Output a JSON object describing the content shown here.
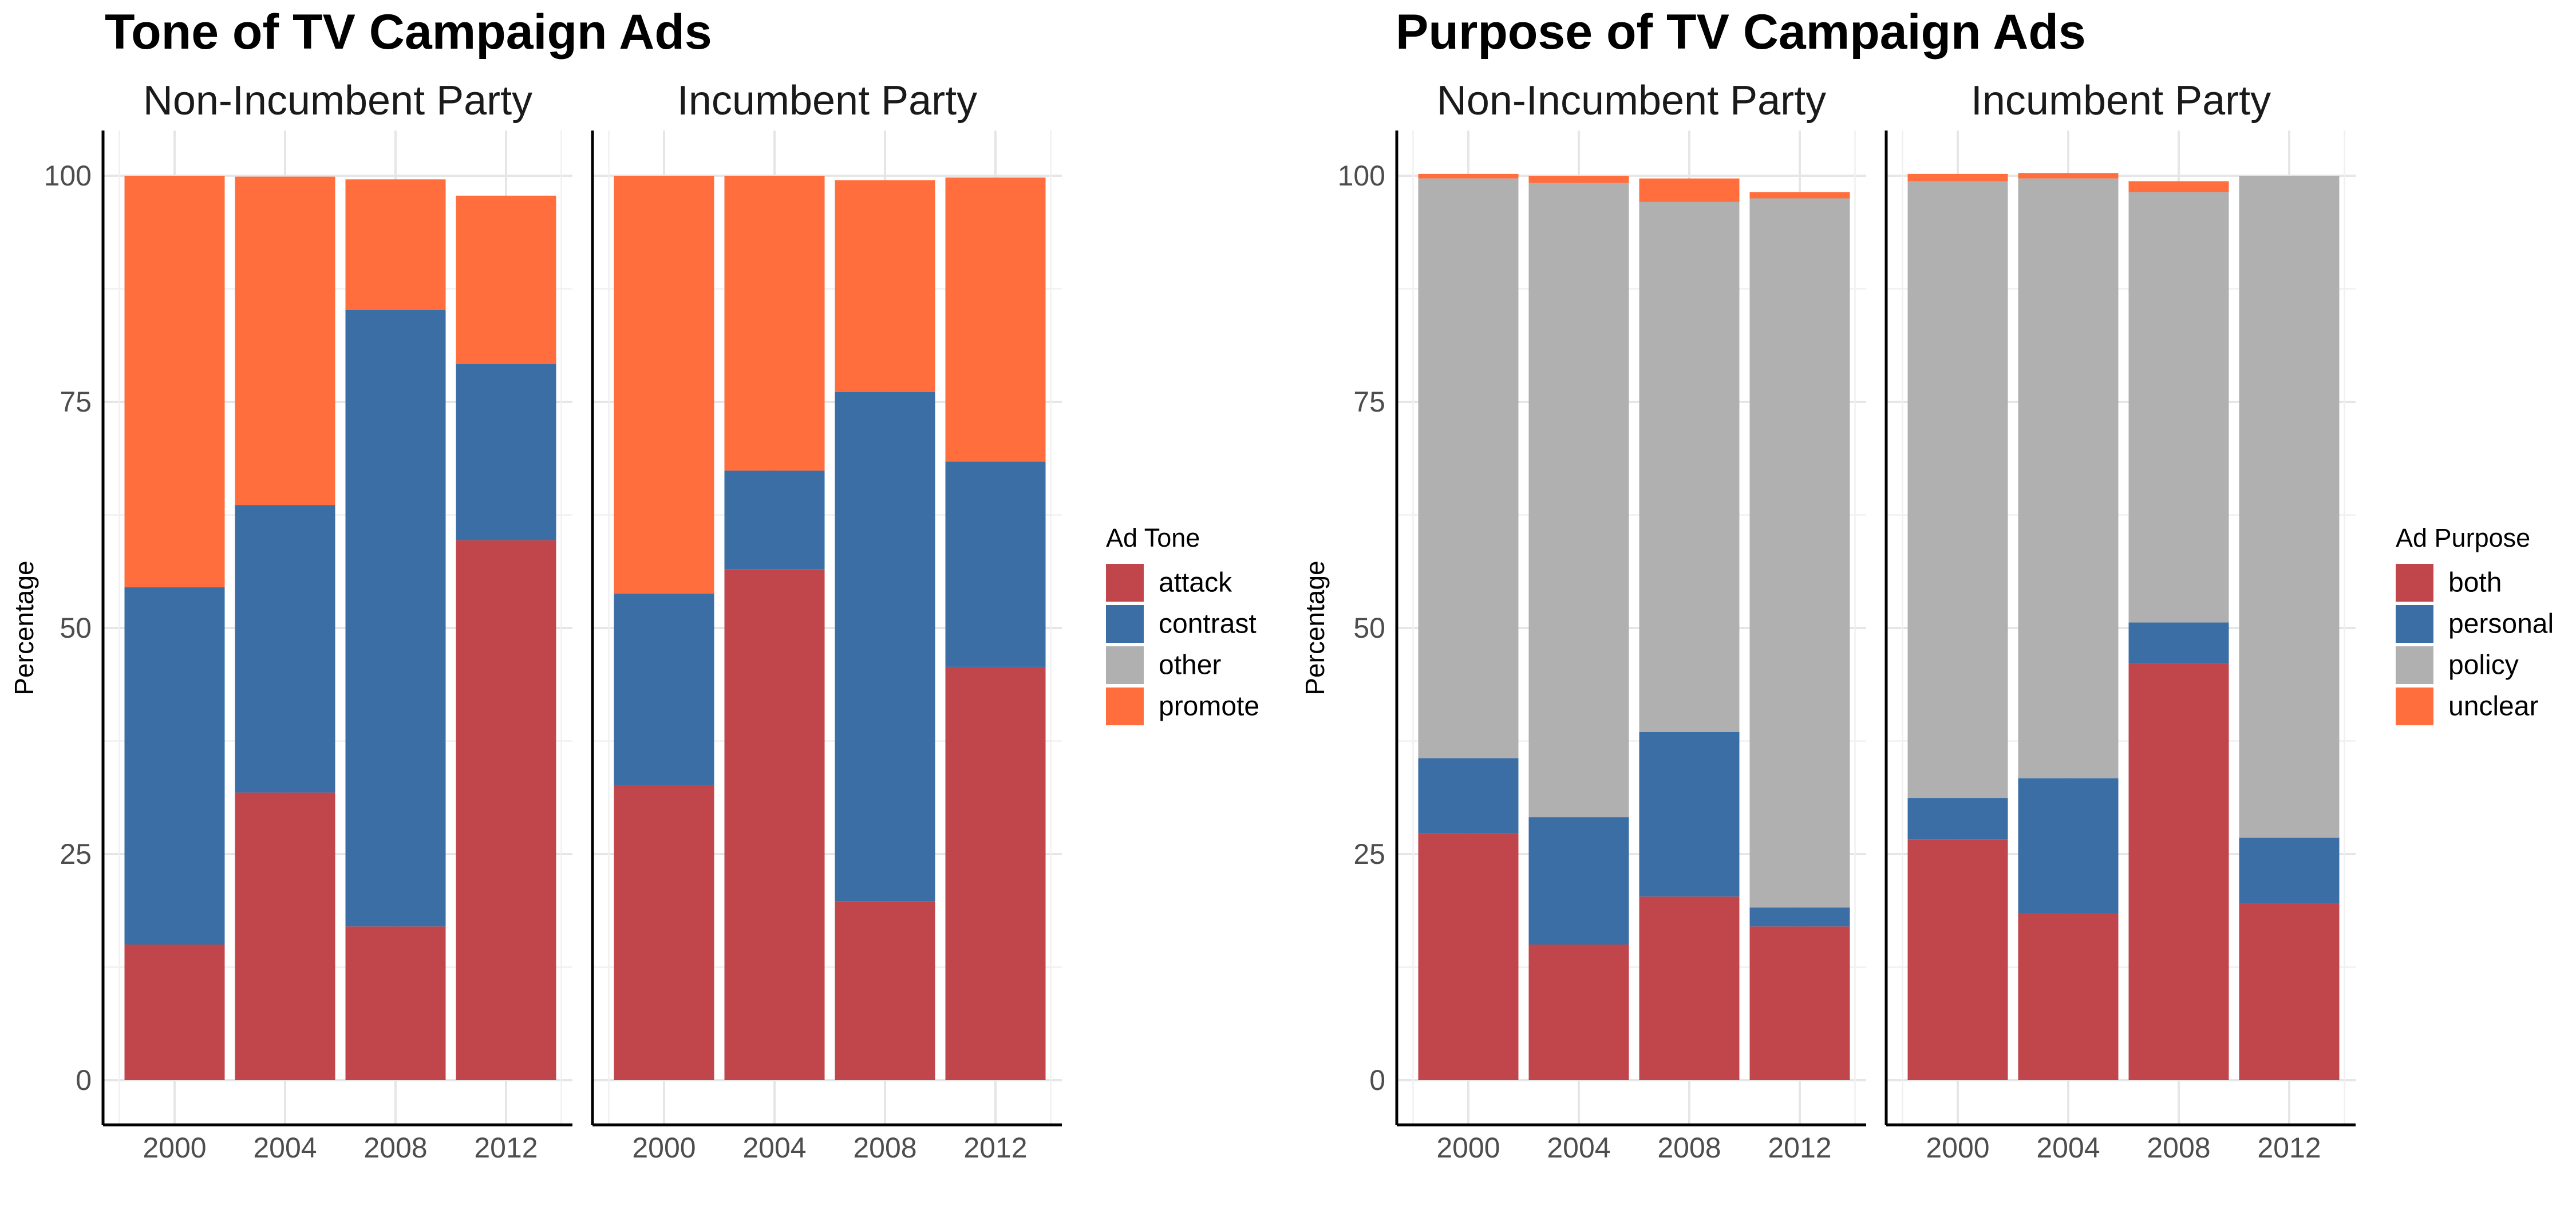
{
  "colors": {
    "attack": "#C1464B",
    "contrast": "#3A6EA5",
    "other": "#B0B0B0",
    "promote": "#FF6E3C"
  },
  "chart_data": [
    {
      "type": "bar",
      "stacked": true,
      "title": "Tone of TV Campaign Ads",
      "xlabel": "",
      "ylabel": "Percentage",
      "ylim": [
        0,
        100
      ],
      "yticks": [
        0,
        25,
        50,
        75,
        100
      ],
      "categories": [
        "2000",
        "2004",
        "2008",
        "2012"
      ],
      "legend": {
        "title": "Ad Tone",
        "position": "right",
        "entries": [
          {
            "label": "attack",
            "color": "#C1464B"
          },
          {
            "label": "contrast",
            "color": "#3A6EA5"
          },
          {
            "label": "other",
            "color": "#B0B0B0"
          },
          {
            "label": "promote",
            "color": "#FF6E3C"
          }
        ]
      },
      "facets": [
        {
          "name": "Non-Incumbent Party",
          "series": [
            {
              "name": "attack",
              "values": [
                15,
                31.8,
                17,
                59.7
              ]
            },
            {
              "name": "contrast",
              "values": [
                39.5,
                31.8,
                68.2,
                19.5
              ]
            },
            {
              "name": "other",
              "values": [
                0,
                0,
                0,
                0
              ]
            },
            {
              "name": "promote",
              "values": [
                45.5,
                36.3,
                14.4,
                18.6
              ]
            }
          ]
        },
        {
          "name": "Incumbent Party",
          "series": [
            {
              "name": "attack",
              "values": [
                32.6,
                56.5,
                19.8,
                45.7
              ]
            },
            {
              "name": "contrast",
              "values": [
                21.2,
                10.9,
                56.3,
                22.7
              ]
            },
            {
              "name": "other",
              "values": [
                0,
                0,
                0,
                0
              ]
            },
            {
              "name": "promote",
              "values": [
                46.2,
                32.6,
                23.4,
                31.4
              ]
            }
          ]
        }
      ]
    },
    {
      "type": "bar",
      "stacked": true,
      "title": "Purpose of TV Campaign Ads",
      "xlabel": "",
      "ylabel": "Percentage",
      "ylim": [
        0,
        100
      ],
      "yticks": [
        0,
        25,
        50,
        75,
        100
      ],
      "categories": [
        "2000",
        "2004",
        "2008",
        "2012"
      ],
      "legend": {
        "title": "Ad Purpose",
        "position": "right",
        "entries": [
          {
            "label": "both",
            "color": "#C1464B"
          },
          {
            "label": "personal",
            "color": "#3A6EA5"
          },
          {
            "label": "policy",
            "color": "#B0B0B0"
          },
          {
            "label": "unclear",
            "color": "#FF6E3C"
          }
        ]
      },
      "facets": [
        {
          "name": "Non-Incumbent Party",
          "series": [
            {
              "name": "both",
              "values": [
                27.3,
                15,
                20.3,
                17
              ]
            },
            {
              "name": "personal",
              "values": [
                8.3,
                14.1,
                18.2,
                2.1
              ]
            },
            {
              "name": "policy",
              "values": [
                64.1,
                70.1,
                58.6,
                78.4
              ]
            },
            {
              "name": "unclear",
              "values": [
                0.5,
                0.8,
                2.6,
                0.7
              ]
            }
          ]
        },
        {
          "name": "Incumbent Party",
          "series": [
            {
              "name": "both",
              "values": [
                26.6,
                18.4,
                46.1,
                19.6
              ]
            },
            {
              "name": "personal",
              "values": [
                4.6,
                15,
                4.5,
                7.2
              ]
            },
            {
              "name": "policy",
              "values": [
                68.2,
                66.3,
                47.6,
                73.2
              ]
            },
            {
              "name": "unclear",
              "values": [
                0.8,
                0.6,
                1.2,
                0
              ]
            }
          ]
        }
      ]
    }
  ]
}
